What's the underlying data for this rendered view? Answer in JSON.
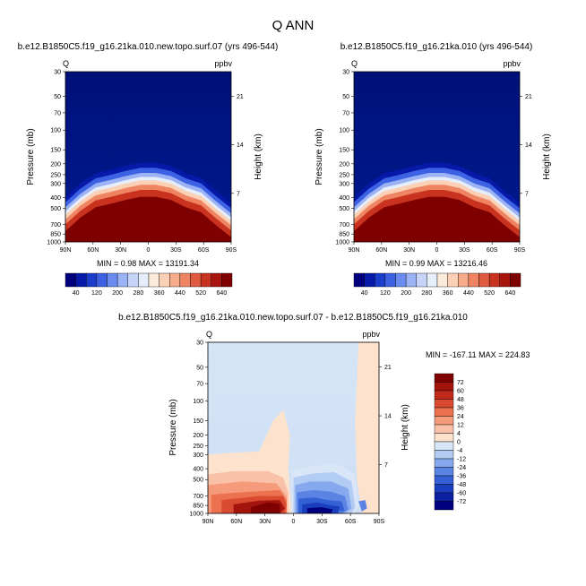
{
  "page": {
    "title": "Q ANN"
  },
  "chart_data": [
    {
      "type": "heatmap",
      "title": "b.e12.B1850C5.f19_g16.21ka.010.new.topo.surf.07 (yrs 496-544)",
      "corner_left": "Q",
      "corner_right": "ppbv",
      "ylabel": "Pressure (mb)",
      "ylabel_right": "Height (km)",
      "x_ticks": [
        "90N",
        "60N",
        "30N",
        "0",
        "30S",
        "60S",
        "90S"
      ],
      "y_ticks": [
        "30",
        "50",
        "70",
        "100",
        "150",
        "200",
        "250",
        "300",
        "400",
        "500",
        "700",
        "850",
        "1000"
      ],
      "right_ticks": [
        "21",
        "14",
        "7"
      ],
      "stats": "MIN =  0.98   MAX = 13191.34",
      "tropopause_mb": [
        300,
        290,
        280,
        260,
        240,
        225,
        225,
        240,
        280,
        310,
        340,
        340
      ]
    },
    {
      "type": "heatmap",
      "title": "b.e12.B1850C5.f19_g16.21ka.010 (yrs 496-544)",
      "corner_left": "Q",
      "corner_right": "ppbv",
      "ylabel": "Pressure (mb)",
      "ylabel_right": "Height (km)",
      "x_ticks": [
        "90N",
        "60N",
        "30N",
        "0",
        "30S",
        "60S",
        "90S"
      ],
      "y_ticks": [
        "30",
        "50",
        "70",
        "100",
        "150",
        "200",
        "250",
        "300",
        "400",
        "500",
        "700",
        "850",
        "1000"
      ],
      "right_ticks": [
        "21",
        "14",
        "7"
      ],
      "stats": "MIN =  0.99   MAX = 13216.46",
      "tropopause_mb": [
        300,
        290,
        280,
        260,
        240,
        225,
        225,
        240,
        280,
        310,
        340,
        340
      ]
    },
    {
      "type": "heatmap",
      "title": "b.e12.B1850C5.f19_g16.21ka.010.new.topo.surf.07 - b.e12.B1850C5.f19_g16.21ka.010",
      "corner_left": "Q",
      "corner_right": "ppbv",
      "ylabel": "Pressure (mb)",
      "ylabel_right": "Height (km)",
      "x_ticks": [
        "90N",
        "60N",
        "30N",
        "0",
        "30S",
        "60S",
        "90S"
      ],
      "y_ticks": [
        "30",
        "50",
        "70",
        "100",
        "150",
        "200",
        "250",
        "300",
        "400",
        "500",
        "700",
        "850",
        "1000"
      ],
      "right_ticks": [
        "21",
        "14",
        "7"
      ],
      "stats": "MIN = -167.11   MAX = 224.83"
    }
  ],
  "colorbar_abs": {
    "labels": [
      "40",
      "120",
      "200",
      "280",
      "360",
      "440",
      "520",
      "640"
    ],
    "colors": [
      "#00007f",
      "#0619a8",
      "#1a3ecb",
      "#3c62e3",
      "#6a8cf0",
      "#9bb2f5",
      "#c5d4f8",
      "#e6eefb",
      "#fdebd9",
      "#fbd0b5",
      "#f6ab8a",
      "#ee8462",
      "#df5a3e",
      "#c8321f",
      "#a8150e",
      "#7f0000"
    ]
  },
  "colorbar_diff": {
    "labels": [
      "72",
      "60",
      "48",
      "36",
      "24",
      "12",
      "4",
      "0",
      "-4",
      "-12",
      "-24",
      "-36",
      "-48",
      "-60",
      "-72"
    ],
    "colors": [
      "#7f0000",
      "#a3140c",
      "#c22a19",
      "#d94a30",
      "#ec714f",
      "#f59b7c",
      "#f9c2a8",
      "#fde2cd",
      "#d8e6f7",
      "#b3ccf4",
      "#85a8ee",
      "#5a83e4",
      "#3460d6",
      "#1a3ebd",
      "#0a20a0",
      "#00007f"
    ]
  }
}
